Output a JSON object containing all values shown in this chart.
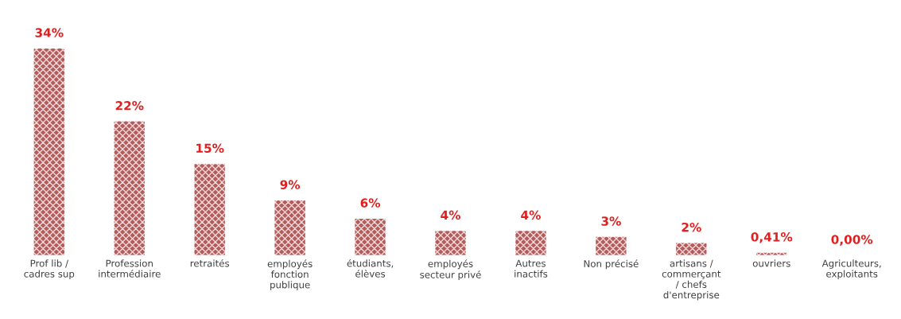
{
  "chart_data": {
    "type": "bar",
    "categories": [
      "Prof lib /\ncadres sup",
      "Profession\nintermédiaire",
      "retraités",
      "employés\nfonction\npublique",
      "étudiants,\nélèves",
      "employés\nsecteur privé",
      "Autres\ninactifs",
      "Non précisé",
      "artisans /\ncommerçant\n/ chefs\nd'entreprise",
      "ouvriers",
      "Agriculteurs,\nexploitants"
    ],
    "values": [
      34,
      22,
      15,
      9,
      6,
      4,
      4,
      3,
      2,
      0.41,
      0
    ],
    "value_labels": [
      "34%",
      "22%",
      "15%",
      "9%",
      "6%",
      "4%",
      "4%",
      "3%",
      "2%",
      "0,41%",
      "0,00%"
    ],
    "color": "#b35c5c",
    "grid": false,
    "legend": false
  }
}
